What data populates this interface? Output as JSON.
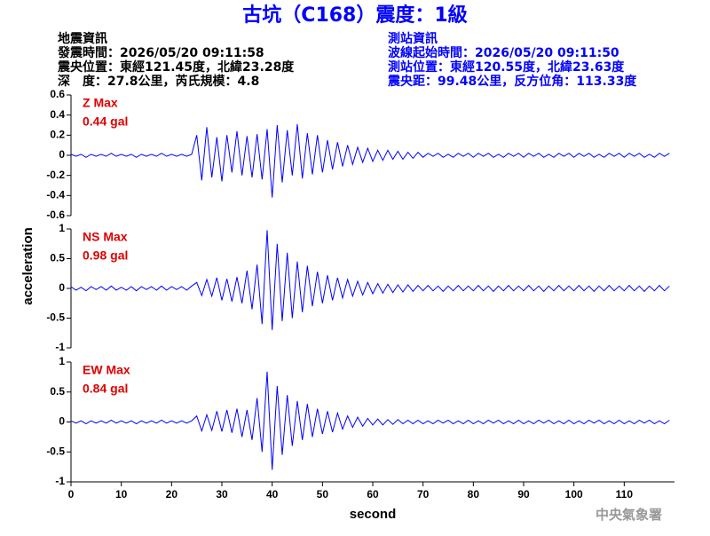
{
  "header": {
    "title": "古坑（C168）震度：1級",
    "left": [
      "地震資訊",
      "發震時間：2026/05/20 09:11:58",
      "震央位置：東經121.45度，北緯23.28度",
      "深　度：27.8公里，芮氏規模：4.8"
    ],
    "right": [
      "測站資訊",
      "波線起始時間：2026/05/20 09:11:50",
      "測站位置：東經120.55度，北緯23.63度",
      "震央距：99.48公里，反方位角：113.33度"
    ]
  },
  "footer": "中央氣象署",
  "chart_data": [
    {
      "type": "line",
      "annotations": [
        "Z Max",
        "0.44 gal"
      ],
      "x": [
        0,
        1,
        2,
        3,
        4,
        5,
        6,
        7,
        8,
        9,
        10,
        11,
        12,
        13,
        14,
        15,
        16,
        17,
        18,
        19,
        20,
        21,
        22,
        23,
        24,
        25,
        26,
        27,
        28,
        29,
        30,
        31,
        32,
        33,
        34,
        35,
        36,
        37,
        38,
        39,
        40,
        41,
        42,
        43,
        44,
        45,
        46,
        47,
        48,
        49,
        50,
        51,
        52,
        53,
        54,
        55,
        56,
        57,
        58,
        59,
        60,
        61,
        62,
        63,
        64,
        65,
        66,
        67,
        68,
        69,
        70,
        71,
        72,
        73,
        74,
        75,
        76,
        77,
        78,
        79,
        80,
        81,
        82,
        83,
        84,
        85,
        86,
        87,
        88,
        89,
        90,
        91,
        92,
        93,
        94,
        95,
        96,
        97,
        98,
        99,
        100,
        101,
        102,
        103,
        104,
        105,
        106,
        107,
        108,
        109,
        110,
        111,
        112,
        113,
        114,
        115,
        116,
        117,
        118,
        119
      ],
      "series": [
        {
          "color": "#0000ff",
          "values": [
            0.01,
            -0.01,
            0.01,
            -0.02,
            0.01,
            -0.01,
            0.01,
            -0.01,
            0.02,
            -0.01,
            0.01,
            -0.01,
            0.01,
            -0.02,
            0.01,
            -0.01,
            0.01,
            -0.01,
            0.02,
            -0.01,
            0.01,
            -0.01,
            0.01,
            -0.01,
            0.01,
            0.2,
            -0.25,
            0.28,
            -0.22,
            0.18,
            -0.26,
            0.2,
            -0.17,
            0.24,
            -0.2,
            0.19,
            -0.22,
            0.21,
            -0.24,
            0.26,
            -0.42,
            0.3,
            -0.27,
            0.25,
            -0.2,
            0.31,
            -0.23,
            0.22,
            -0.19,
            0.2,
            -0.17,
            0.15,
            -0.14,
            0.13,
            -0.11,
            0.1,
            -0.09,
            0.08,
            -0.07,
            0.07,
            -0.06,
            0.05,
            -0.05,
            0.05,
            -0.04,
            0.04,
            -0.04,
            0.03,
            -0.03,
            0.03,
            -0.02,
            0.02,
            -0.01,
            0.02,
            -0.02,
            0.01,
            -0.02,
            0.02,
            -0.01,
            0.02,
            -0.02,
            0.02,
            -0.01,
            0.02,
            -0.02,
            0.01,
            -0.02,
            0.02,
            -0.01,
            0.02,
            -0.02,
            0.02,
            -0.01,
            0.02,
            -0.02,
            0.01,
            -0.02,
            0.02,
            -0.01,
            0.02,
            -0.02,
            0.02,
            -0.01,
            0.02,
            -0.02,
            0.01,
            -0.02,
            0.02,
            -0.01,
            0.02,
            -0.02,
            0.02,
            -0.01,
            0.02,
            -0.02,
            0.01,
            -0.02,
            0.02,
            -0.01,
            0.02
          ]
        }
      ],
      "xlim": [
        0,
        120
      ],
      "ylim": [
        -0.6,
        0.6
      ],
      "yticks": [
        0.6,
        0.4,
        0.2,
        0,
        -0.2,
        -0.4,
        -0.6
      ]
    },
    {
      "type": "line",
      "annotations": [
        "NS Max",
        "0.98 gal"
      ],
      "ylabel": "acceleration",
      "x": [
        0,
        1,
        2,
        3,
        4,
        5,
        6,
        7,
        8,
        9,
        10,
        11,
        12,
        13,
        14,
        15,
        16,
        17,
        18,
        19,
        20,
        21,
        22,
        23,
        24,
        25,
        26,
        27,
        28,
        29,
        30,
        31,
        32,
        33,
        34,
        35,
        36,
        37,
        38,
        39,
        40,
        41,
        42,
        43,
        44,
        45,
        46,
        47,
        48,
        49,
        50,
        51,
        52,
        53,
        54,
        55,
        56,
        57,
        58,
        59,
        60,
        61,
        62,
        63,
        64,
        65,
        66,
        67,
        68,
        69,
        70,
        71,
        72,
        73,
        74,
        75,
        76,
        77,
        78,
        79,
        80,
        81,
        82,
        83,
        84,
        85,
        86,
        87,
        88,
        89,
        90,
        91,
        92,
        93,
        94,
        95,
        96,
        97,
        98,
        99,
        100,
        101,
        102,
        103,
        104,
        105,
        106,
        107,
        108,
        109,
        110,
        111,
        112,
        113,
        114,
        115,
        116,
        117,
        118,
        119
      ],
      "series": [
        {
          "color": "#0000ff",
          "values": [
            0.03,
            -0.03,
            0.02,
            -0.04,
            0.03,
            -0.02,
            0.03,
            -0.03,
            0.04,
            -0.03,
            0.02,
            -0.03,
            0.03,
            -0.04,
            0.03,
            -0.02,
            0.03,
            -0.03,
            0.04,
            -0.03,
            0.03,
            -0.02,
            0.03,
            -0.03,
            0.04,
            0.1,
            -0.12,
            0.15,
            -0.13,
            0.18,
            -0.2,
            0.16,
            -0.22,
            0.19,
            -0.25,
            0.3,
            -0.35,
            0.4,
            -0.6,
            0.98,
            -0.7,
            0.75,
            -0.55,
            0.6,
            -0.5,
            0.45,
            -0.4,
            0.38,
            -0.3,
            0.28,
            -0.25,
            0.22,
            -0.2,
            0.18,
            -0.16,
            0.15,
            -0.13,
            0.12,
            -0.11,
            0.1,
            -0.09,
            0.08,
            -0.08,
            0.07,
            -0.07,
            0.06,
            -0.06,
            0.06,
            -0.05,
            0.05,
            -0.04,
            0.05,
            -0.04,
            0.04,
            -0.05,
            0.04,
            -0.04,
            0.05,
            -0.04,
            0.04,
            -0.04,
            0.05,
            -0.04,
            0.04,
            -0.05,
            0.04,
            -0.04,
            0.05,
            -0.04,
            0.04,
            -0.04,
            0.05,
            -0.04,
            0.04,
            -0.05,
            0.04,
            -0.04,
            0.05,
            -0.04,
            0.04,
            -0.04,
            0.05,
            -0.04,
            0.04,
            -0.05,
            0.04,
            -0.04,
            0.05,
            -0.04,
            0.04,
            -0.04,
            0.05,
            -0.04,
            0.04,
            -0.05,
            0.04,
            -0.04,
            0.05,
            -0.04,
            0.04
          ]
        }
      ],
      "xlim": [
        0,
        120
      ],
      "ylim": [
        -1,
        1
      ],
      "yticks": [
        1,
        0.5,
        0,
        -0.5,
        -1
      ]
    },
    {
      "type": "line",
      "annotations": [
        "EW Max",
        "0.84 gal"
      ],
      "xlabel": "second",
      "x": [
        0,
        1,
        2,
        3,
        4,
        5,
        6,
        7,
        8,
        9,
        10,
        11,
        12,
        13,
        14,
        15,
        16,
        17,
        18,
        19,
        20,
        21,
        22,
        23,
        24,
        25,
        26,
        27,
        28,
        29,
        30,
        31,
        32,
        33,
        34,
        35,
        36,
        37,
        38,
        39,
        40,
        41,
        42,
        43,
        44,
        45,
        46,
        47,
        48,
        49,
        50,
        51,
        52,
        53,
        54,
        55,
        56,
        57,
        58,
        59,
        60,
        61,
        62,
        63,
        64,
        65,
        66,
        67,
        68,
        69,
        70,
        71,
        72,
        73,
        74,
        75,
        76,
        77,
        78,
        79,
        80,
        81,
        82,
        83,
        84,
        85,
        86,
        87,
        88,
        89,
        90,
        91,
        92,
        93,
        94,
        95,
        96,
        97,
        98,
        99,
        100,
        101,
        102,
        103,
        104,
        105,
        106,
        107,
        108,
        109,
        110,
        111,
        112,
        113,
        114,
        115,
        116,
        117,
        118,
        119
      ],
      "series": [
        {
          "color": "#0000ff",
          "values": [
            0.02,
            -0.02,
            0.02,
            -0.03,
            0.02,
            -0.02,
            0.02,
            -0.02,
            0.03,
            -0.02,
            0.02,
            -0.02,
            0.02,
            -0.03,
            0.02,
            -0.02,
            0.02,
            -0.02,
            0.03,
            -0.02,
            0.02,
            -0.02,
            0.02,
            -0.02,
            0.02,
            0.1,
            -0.15,
            0.12,
            -0.14,
            0.18,
            -0.16,
            0.2,
            -0.18,
            0.22,
            -0.25,
            0.2,
            -0.3,
            0.4,
            -0.5,
            0.84,
            -0.8,
            0.6,
            -0.55,
            0.45,
            -0.4,
            0.35,
            -0.3,
            0.3,
            -0.25,
            0.22,
            -0.2,
            0.18,
            -0.17,
            0.15,
            -0.12,
            0.1,
            -0.09,
            0.08,
            -0.07,
            0.06,
            -0.05,
            0.05,
            -0.05,
            0.04,
            -0.04,
            0.04,
            -0.03,
            0.03,
            -0.03,
            0.03,
            -0.03,
            0.02,
            -0.03,
            0.03,
            -0.02,
            0.03,
            -0.03,
            0.02,
            -0.03,
            0.03,
            -0.03,
            0.02,
            -0.03,
            0.03,
            -0.02,
            0.03,
            -0.03,
            0.02,
            -0.03,
            0.03,
            -0.03,
            0.02,
            -0.03,
            0.03,
            -0.02,
            0.03,
            -0.03,
            0.02,
            -0.03,
            0.03,
            -0.03,
            0.02,
            -0.03,
            0.03,
            -0.02,
            0.03,
            -0.03,
            0.02,
            -0.03,
            0.03,
            -0.03,
            0.02,
            -0.03,
            0.03,
            -0.02,
            0.03,
            -0.03,
            0.02,
            -0.03,
            0.03
          ]
        }
      ],
      "xlim": [
        0,
        120
      ],
      "ylim": [
        -1,
        1
      ],
      "yticks": [
        1,
        0.5,
        0,
        -0.5,
        -1
      ],
      "xticks": [
        0,
        10,
        20,
        30,
        40,
        50,
        60,
        70,
        80,
        90,
        100,
        110
      ]
    }
  ]
}
